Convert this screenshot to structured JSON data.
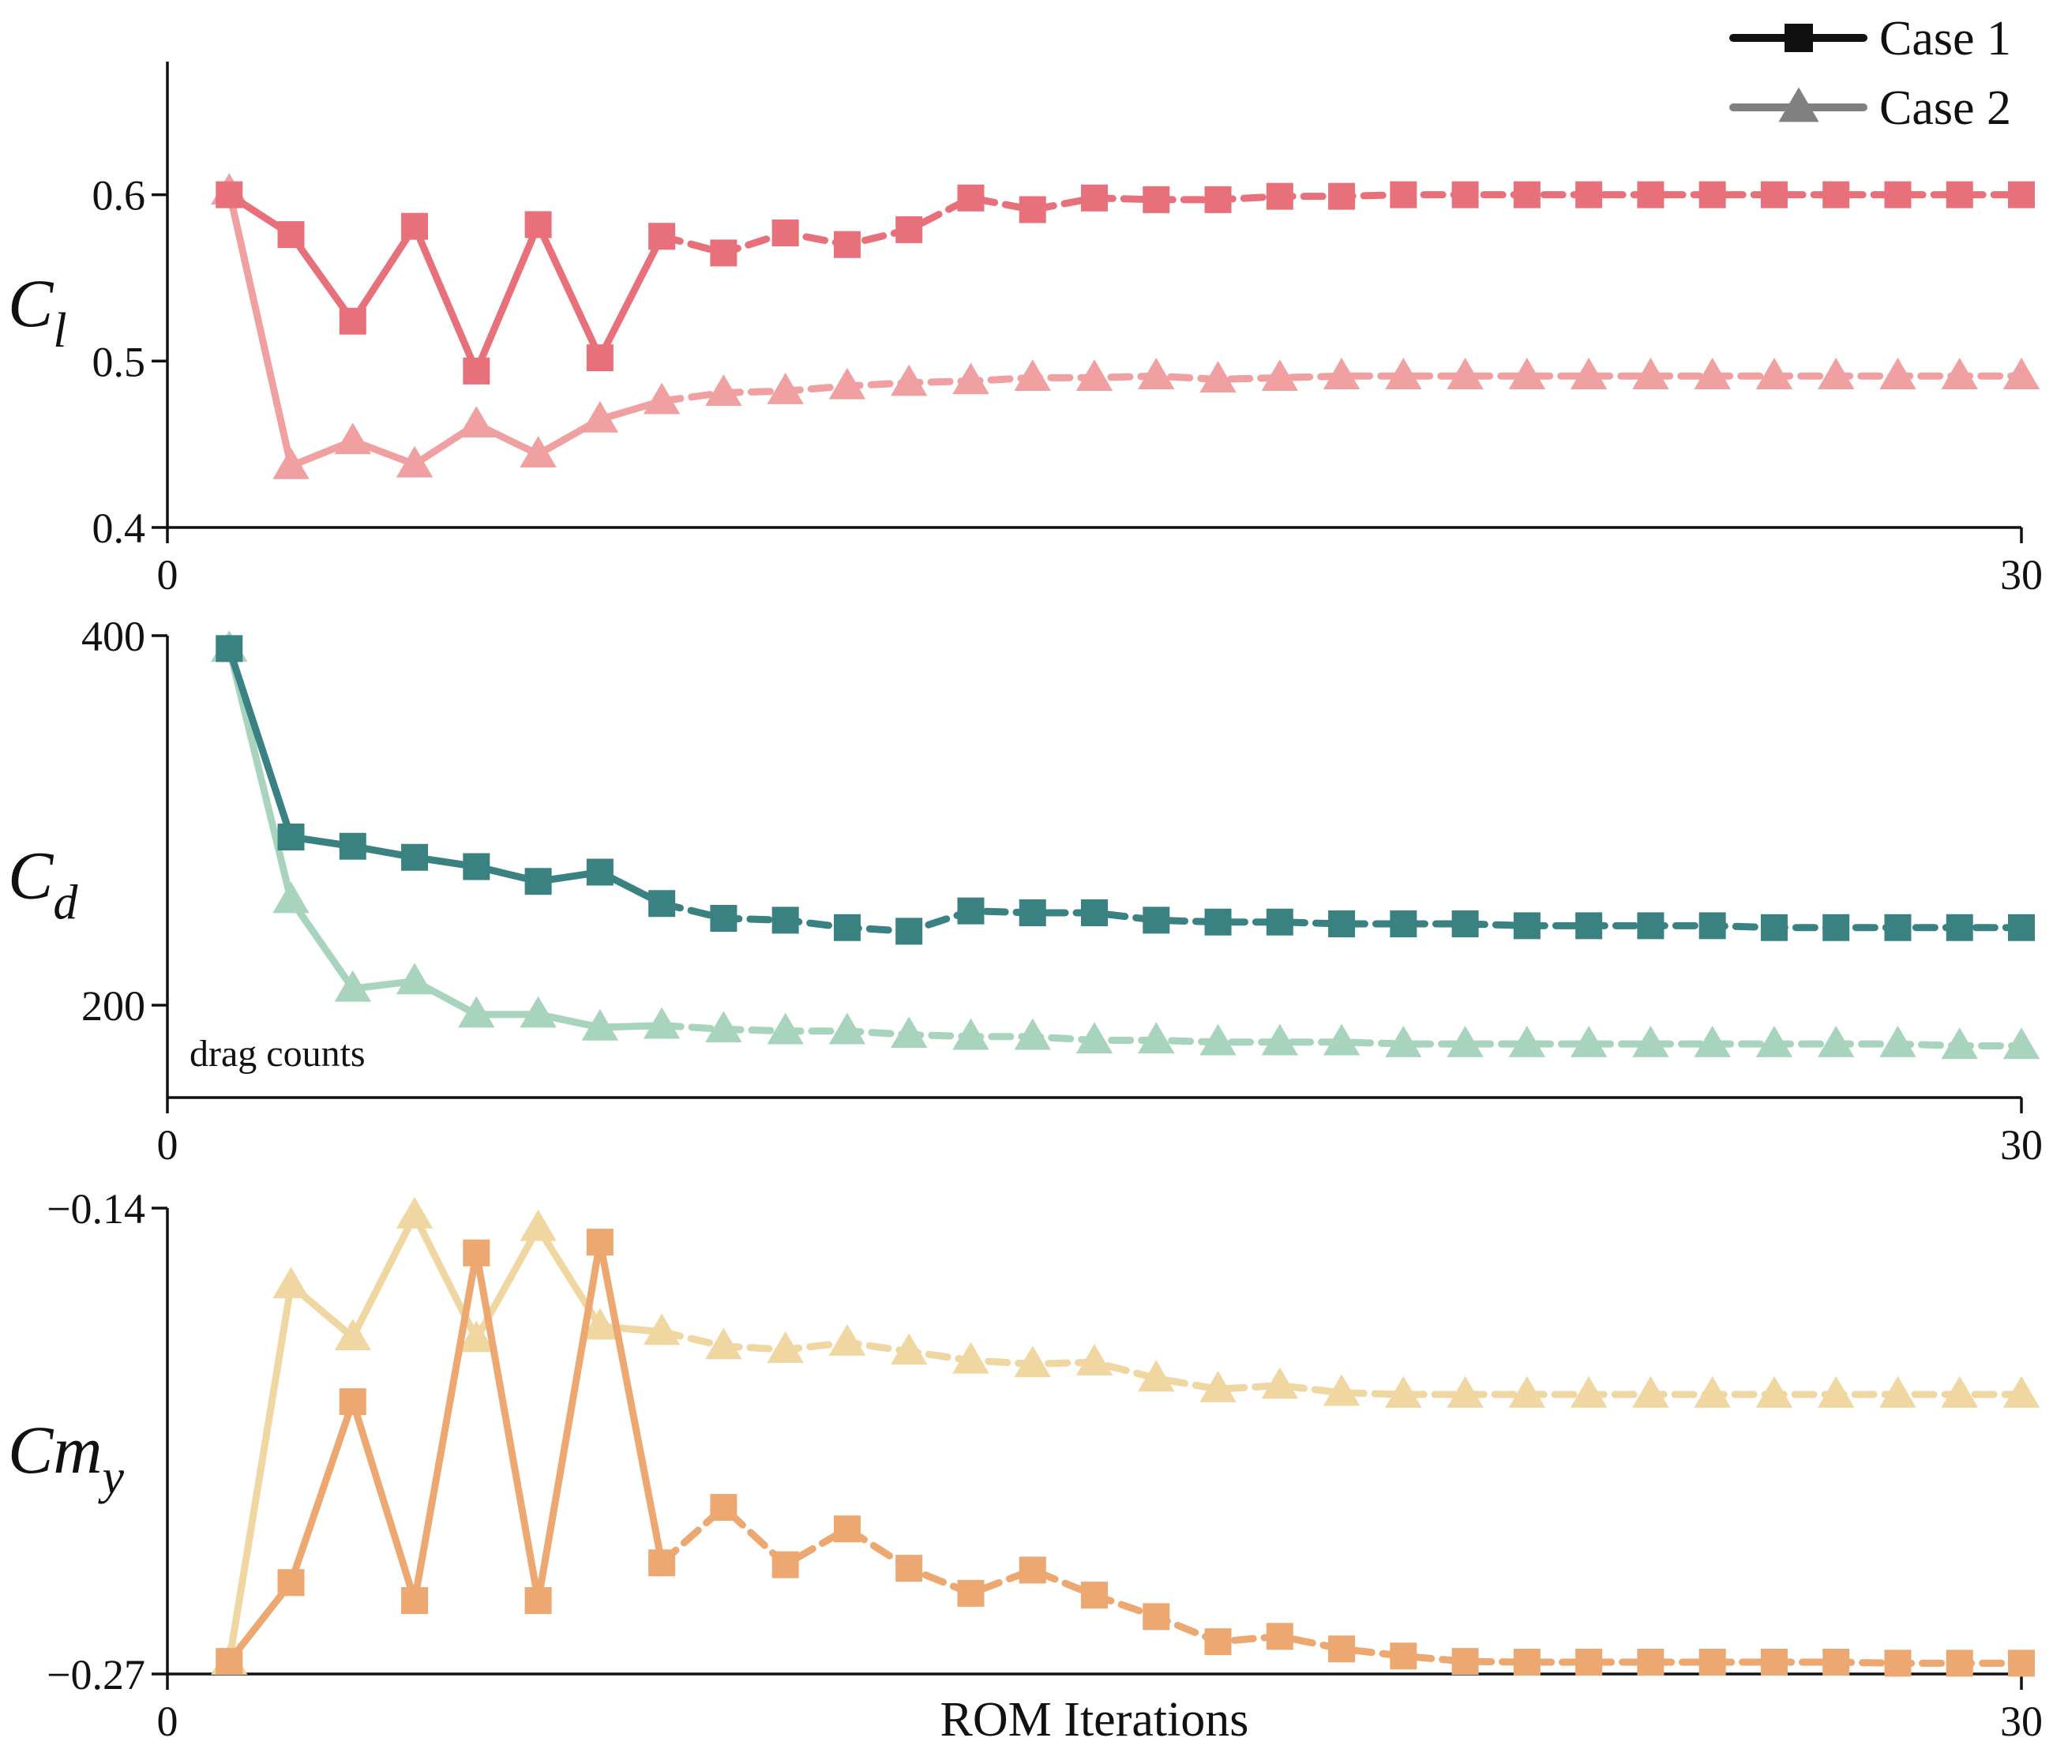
{
  "chart_data": [
    {
      "type": "line",
      "panel": "Cl",
      "ylabel_main": "C",
      "ylabel_sub": "l",
      "xlim": [
        0,
        30
      ],
      "ylim": [
        0.4,
        0.68
      ],
      "xticks": [
        0,
        30
      ],
      "xtick_labels": [
        "0",
        "30"
      ],
      "yticks": [
        0.4,
        0.5,
        0.6
      ],
      "ytick_labels": [
        "0.4",
        "0.5",
        "0.6"
      ],
      "annotation": "",
      "series": [
        {
          "name": "Case 1",
          "marker": "square",
          "color": "#E8707A",
          "x": [
            1,
            2,
            3,
            4,
            5,
            6,
            7,
            8,
            9,
            10,
            11,
            12,
            13,
            14,
            15,
            16,
            17,
            18,
            19,
            20,
            21,
            22,
            23,
            24,
            25,
            26,
            27,
            28,
            29,
            30
          ],
          "values": [
            0.6,
            0.576,
            0.524,
            0.581,
            0.494,
            0.582,
            0.502,
            0.575,
            0.565,
            0.577,
            0.57,
            0.579,
            0.598,
            0.591,
            0.598,
            0.597,
            0.597,
            0.599,
            0.599,
            0.6,
            0.6,
            0.6,
            0.6,
            0.6,
            0.6,
            0.6,
            0.6,
            0.6,
            0.6,
            0.6
          ]
        },
        {
          "name": "Case 2",
          "marker": "triangle",
          "color": "#F0A0A0",
          "x": [
            1,
            2,
            3,
            4,
            5,
            6,
            7,
            8,
            9,
            10,
            11,
            12,
            13,
            14,
            15,
            16,
            17,
            18,
            19,
            20,
            21,
            22,
            23,
            24,
            25,
            26,
            27,
            28,
            29,
            30
          ],
          "values": [
            0.602,
            0.437,
            0.452,
            0.438,
            0.462,
            0.444,
            0.465,
            0.476,
            0.481,
            0.482,
            0.485,
            0.487,
            0.488,
            0.49,
            0.49,
            0.491,
            0.489,
            0.49,
            0.491,
            0.491,
            0.491,
            0.491,
            0.491,
            0.491,
            0.491,
            0.491,
            0.491,
            0.491,
            0.491,
            0.491
          ]
        }
      ]
    },
    {
      "type": "line",
      "panel": "Cd",
      "ylabel_main": "C",
      "ylabel_sub": "d",
      "xlim": [
        0,
        30
      ],
      "ylim": [
        150,
        400
      ],
      "xticks": [
        0,
        30
      ],
      "xtick_labels": [
        "0",
        "30"
      ],
      "yticks": [
        200,
        400
      ],
      "ytick_labels": [
        "200",
        "400"
      ],
      "annotation": "drag counts",
      "series": [
        {
          "name": "Case 1",
          "marker": "square",
          "color": "#3A8282",
          "x": [
            1,
            2,
            3,
            4,
            5,
            6,
            7,
            8,
            9,
            10,
            11,
            12,
            13,
            14,
            15,
            16,
            17,
            18,
            19,
            20,
            21,
            22,
            23,
            24,
            25,
            26,
            27,
            28,
            29,
            30
          ],
          "values": [
            393,
            291,
            286,
            280,
            275,
            267,
            272,
            255,
            247,
            246,
            242,
            240,
            251,
            250,
            250,
            246,
            245,
            245,
            244,
            244,
            244,
            243,
            243,
            243,
            243,
            242,
            242,
            242,
            242,
            242
          ]
        },
        {
          "name": "Case 2",
          "marker": "triangle",
          "color": "#A8D4BE",
          "x": [
            1,
            2,
            3,
            4,
            5,
            6,
            7,
            8,
            9,
            10,
            11,
            12,
            13,
            14,
            15,
            16,
            17,
            18,
            19,
            20,
            21,
            22,
            23,
            24,
            25,
            26,
            27,
            28,
            29,
            30
          ],
          "values": [
            393,
            257,
            209,
            213,
            195,
            195,
            188,
            189,
            187,
            186,
            186,
            184,
            183,
            183,
            181,
            181,
            180,
            180,
            180,
            179,
            179,
            179,
            179,
            179,
            179,
            179,
            179,
            179,
            178,
            178
          ]
        }
      ]
    },
    {
      "type": "line",
      "panel": "Cmy",
      "ylabel_main": "Cm",
      "ylabel_sub": "y",
      "xlim": [
        0,
        30
      ],
      "ylim": [
        -0.27,
        -0.14
      ],
      "xticks": [
        0,
        30
      ],
      "xtick_labels": [
        "0",
        "30"
      ],
      "yticks": [
        -0.27,
        -0.14
      ],
      "ytick_labels": [
        "−0.27",
        "−0.14"
      ],
      "xlabel": "ROM Iterations",
      "annotation": "",
      "series": [
        {
          "name": "Case 1",
          "marker": "square",
          "color": "#ECA870",
          "x": [
            1,
            2,
            3,
            4,
            5,
            6,
            7,
            8,
            9,
            10,
            11,
            12,
            13,
            14,
            15,
            16,
            17,
            18,
            19,
            20,
            21,
            22,
            23,
            24,
            25,
            26,
            27,
            28,
            29,
            30
          ],
          "values": [
            -0.2665,
            -0.2445,
            -0.194,
            -0.2495,
            -0.1525,
            -0.2495,
            -0.1495,
            -0.239,
            -0.2235,
            -0.2395,
            -0.2295,
            -0.2405,
            -0.2475,
            -0.241,
            -0.248,
            -0.254,
            -0.261,
            -0.2595,
            -0.263,
            -0.265,
            -0.2665,
            -0.2667,
            -0.2667,
            -0.2667,
            -0.2667,
            -0.2667,
            -0.2667,
            -0.267,
            -0.267,
            -0.267
          ]
        },
        {
          "name": "Case 2",
          "marker": "triangle",
          "color": "#F0D6A0",
          "x": [
            1,
            2,
            3,
            4,
            5,
            6,
            7,
            8,
            9,
            10,
            11,
            12,
            13,
            14,
            15,
            16,
            17,
            18,
            19,
            20,
            21,
            22,
            23,
            24,
            25,
            26,
            27,
            28,
            29,
            30
          ],
          "values": [
            -0.2665,
            -0.1615,
            -0.176,
            -0.142,
            -0.1765,
            -0.1455,
            -0.173,
            -0.1745,
            -0.1785,
            -0.1795,
            -0.1775,
            -0.18,
            -0.1825,
            -0.1835,
            -0.183,
            -0.1875,
            -0.1905,
            -0.1895,
            -0.1915,
            -0.192,
            -0.192,
            -0.192,
            -0.192,
            -0.192,
            -0.192,
            -0.192,
            -0.192,
            -0.192,
            -0.192,
            -0.192
          ]
        }
      ]
    }
  ],
  "legend": {
    "position": "top-right",
    "entries": [
      {
        "label": "Case 1",
        "marker": "square",
        "color": "#111111"
      },
      {
        "label": "Case 2",
        "marker": "triangle",
        "color": "#808080"
      }
    ]
  }
}
